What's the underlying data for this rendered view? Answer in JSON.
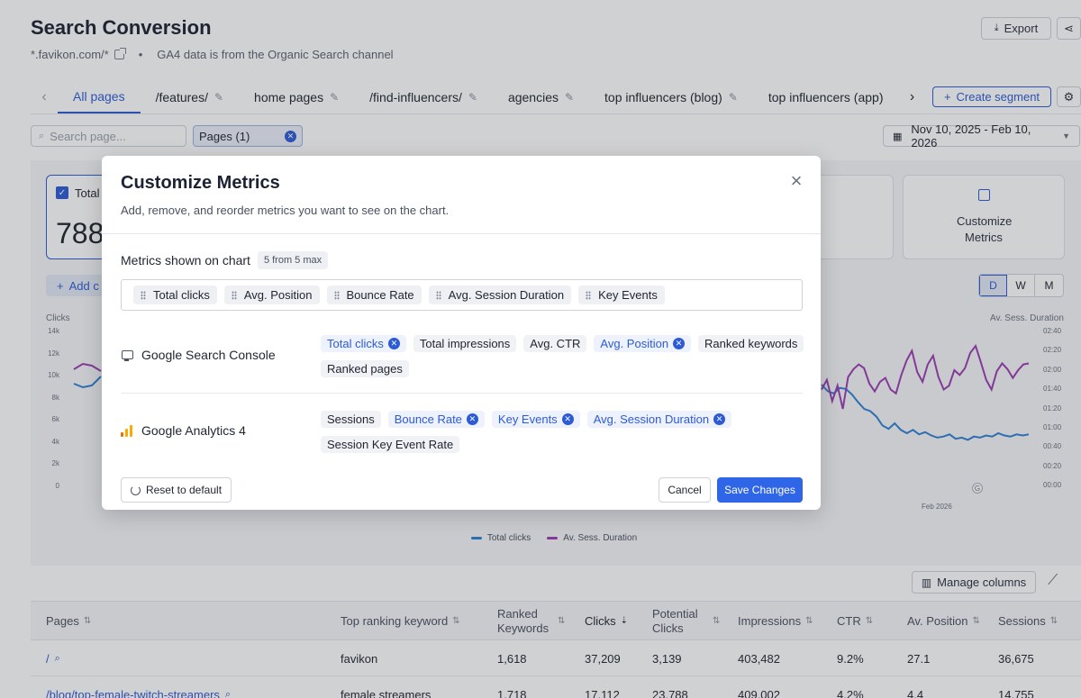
{
  "header": {
    "title": "Search Conversion",
    "domain": "*.favikon.com/*",
    "note": "GA4 data is from the Organic Search channel",
    "export_label": "Export"
  },
  "tabs": [
    {
      "label": "All pages"
    },
    {
      "label": "/features/"
    },
    {
      "label": "home pages"
    },
    {
      "label": "/find-influencers/"
    },
    {
      "label": "agencies"
    },
    {
      "label": "top influencers (blog)"
    },
    {
      "label": "top influencers (app)"
    }
  ],
  "create_segment_label": "Create segment",
  "filters": {
    "search_placeholder": "Search page...",
    "pages_chip": "Pages (1)",
    "date_range": "Nov 10, 2025 - Feb 10, 2026"
  },
  "summary_card": {
    "label": "Total",
    "value": "788"
  },
  "customize_card_label": "Customize Metrics",
  "add_label": "Add c",
  "granularity": [
    "D",
    "W",
    "M"
  ],
  "chart": {
    "left_axis_label": "Clicks",
    "right_axis_label": "Av. Sess. Duration",
    "left_ticks": [
      "14k",
      "12k",
      "10k",
      "8k",
      "6k",
      "4k",
      "2k",
      "0"
    ],
    "right_ticks": [
      "02:40",
      "02:20",
      "02:00",
      "01:40",
      "01:20",
      "01:00",
      "00:40",
      "00:20",
      "00:00"
    ],
    "x_label": "Feb 2026",
    "marker": "G",
    "legend": [
      {
        "name": "Total clicks",
        "color": "#2f7fd6"
      },
      {
        "name": "Av. Sess. Duration",
        "color": "#9b3db4"
      }
    ],
    "clicks_series_tail": [
      9200,
      8600,
      8400,
      8900,
      8800,
      8300,
      7600,
      7000,
      6800,
      6300,
      5500,
      5200,
      5700,
      5100,
      4800,
      5100,
      4700,
      4900,
      4600,
      4400,
      4500,
      4700,
      4300,
      4400,
      4200,
      4500,
      4400,
      4600,
      4500,
      4800,
      4600,
      4500,
      4700,
      4600,
      4700
    ],
    "duration_series_tail_seconds": [
      100,
      110,
      88,
      104,
      80,
      113,
      121,
      126,
      122,
      106,
      98,
      108,
      112,
      100,
      96,
      115,
      130,
      140,
      118,
      108,
      126,
      135,
      113,
      100,
      104,
      120,
      115,
      122,
      138,
      145,
      128,
      110,
      100,
      119,
      127,
      121,
      112,
      120,
      126,
      127
    ]
  },
  "manage_columns_label": "Manage columns",
  "table": {
    "columns": [
      "Pages",
      "Top ranking keyword",
      "Ranked Keywords",
      "Clicks",
      "Potential Clicks",
      "Impressions",
      "CTR",
      "Av. Position",
      "Sessions"
    ],
    "rows": [
      {
        "page": "/",
        "keyword": "favikon",
        "ranked": "1,618",
        "clicks": "37,209",
        "potential": "3,139",
        "impressions": "403,482",
        "ctr": "9.2%",
        "position": "27.1",
        "sessions": "36,675"
      },
      {
        "page": "/blog/top-female-twitch-streamers",
        "keyword": "female streamers",
        "ranked": "1,718",
        "clicks": "17,112",
        "potential": "23,788",
        "impressions": "409,002",
        "ctr": "4.2%",
        "position": "4.4",
        "sessions": "14,755"
      }
    ]
  },
  "modal": {
    "title": "Customize Metrics",
    "subtitle": "Add, remove, and reorder metrics you want to see on the chart.",
    "shown_label": "Metrics shown on chart",
    "shown_badge": "5 from 5 max",
    "order": [
      "Total clicks",
      "Avg. Position",
      "Bounce Rate",
      "Avg. Session Duration",
      "Key Events"
    ],
    "sources": [
      {
        "name": "Google Search Console",
        "metrics": [
          {
            "label": "Total clicks",
            "selected": true
          },
          {
            "label": "Total impressions",
            "selected": false
          },
          {
            "label": "Avg. CTR",
            "selected": false
          },
          {
            "label": "Avg. Position",
            "selected": true
          },
          {
            "label": "Ranked keywords",
            "selected": false
          },
          {
            "label": "Ranked pages",
            "selected": false
          }
        ]
      },
      {
        "name": "Google Analytics 4",
        "metrics": [
          {
            "label": "Sessions",
            "selected": false
          },
          {
            "label": "Bounce Rate",
            "selected": true
          },
          {
            "label": "Key Events",
            "selected": true
          },
          {
            "label": "Avg. Session Duration",
            "selected": true
          },
          {
            "label": "Session Key Event Rate",
            "selected": false
          }
        ]
      }
    ],
    "reset_label": "Reset to default",
    "cancel_label": "Cancel",
    "save_label": "Save Changes"
  }
}
